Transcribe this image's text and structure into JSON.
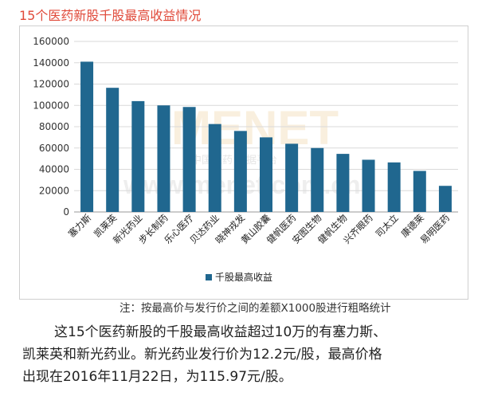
{
  "title": "15个医药新股千股最高收益情况",
  "note": "注：按最高价与发行价之间的差额X1000股进行粗略统计",
  "paragraph": {
    "line1": "这15个医药新股的千股最高收益超过10万的有塞力斯、",
    "line2": "凯莱英和新光药业。新光药业发行价为12.2元/股，最高价格",
    "line3": "出现在2016年11月22日，为115.97元/股。"
  },
  "watermark": {
    "text": "MENET",
    "subtitle": "中国医药  数据平台",
    "url": "www.menet.com.cn"
  },
  "colors": {
    "bar": "#20678f",
    "title": "#e04a3a",
    "grid": "#d9d9d9"
  },
  "chart_data": {
    "type": "bar",
    "title": "15个医药新股千股最高收益情况",
    "categories": [
      "塞力斯",
      "凯莱英",
      "新光药业",
      "步长制药",
      "乐心医疗",
      "贝达药业",
      "晓神戎发",
      "黄山胶囊",
      "健帆医药",
      "安图生物",
      "健帆生物",
      "兴齐眼药",
      "司太立",
      "康德莱",
      "易明医药"
    ],
    "series": [
      {
        "name": "千股最高收益",
        "values": [
          141000,
          116500,
          104000,
          100000,
          98500,
          82500,
          76000,
          70000,
          64000,
          60000,
          54500,
          49000,
          46500,
          38500,
          24500
        ]
      }
    ],
    "ylim": [
      0,
      160000
    ],
    "yticks": [
      0,
      20000,
      40000,
      60000,
      80000,
      100000,
      120000,
      140000,
      160000
    ],
    "xlabel": "",
    "ylabel": "",
    "legend": "bottom-left",
    "grid": true
  }
}
